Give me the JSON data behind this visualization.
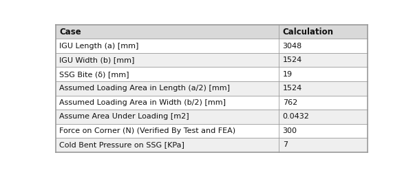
{
  "header": [
    "Case",
    "Calculation"
  ],
  "rows": [
    [
      "IGU Length (a) [mm]",
      "3048"
    ],
    [
      "IGU Width (b) [mm]",
      "1524"
    ],
    [
      "SSG Bite (δ) [mm]",
      "19"
    ],
    [
      "Assumed Loading Area in Length (a/2) [mm]",
      "1524"
    ],
    [
      "Assumed Loading Area in Width (b/2) [mm]",
      "762"
    ],
    [
      "Assume Area Under Loading [m2]",
      "0.0432"
    ],
    [
      "Force on Corner (N) (Verified By Test and FEA)",
      "300"
    ],
    [
      "Cold Bent Pressure on SSG [KPa]",
      "7"
    ]
  ],
  "header_bg": "#d9d9d9",
  "white_row_bg": "#ffffff",
  "gray_row_bg": "#efefef",
  "border_color": "#999999",
  "header_font_size": 8.5,
  "row_font_size": 8.0,
  "col_split": 0.715,
  "fig_width": 6.0,
  "fig_height": 2.54,
  "text_color": "#111111",
  "outer_lw": 1.2,
  "inner_lw": 0.6
}
